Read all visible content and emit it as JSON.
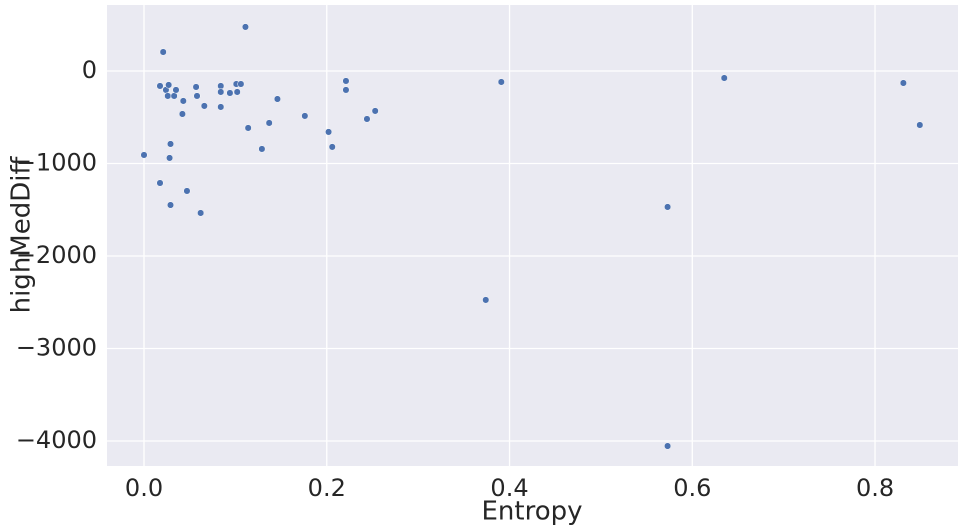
{
  "chart_data": {
    "type": "scatter",
    "x_label": "Entropy",
    "y_label": "highMedDiff",
    "x": [
      0,
      0.0175,
      0.0175,
      0.021,
      0.024,
      0.027,
      0.026,
      0.028,
      0.029,
      0.029,
      0.033,
      0.035,
      0.042,
      0.043,
      0.047,
      0.057,
      0.058,
      0.062,
      0.066,
      0.084,
      0.084,
      0.084,
      0.094,
      0.101,
      0.102,
      0.106,
      0.111,
      0.114,
      0.129,
      0.137,
      0.146,
      0.176,
      0.202,
      0.206,
      0.221,
      0.221,
      0.244,
      0.253,
      0.374,
      0.391,
      0.573,
      0.573,
      0.635,
      0.831,
      0.849
    ],
    "y": [
      -908,
      -1211,
      -162,
      205,
      -205,
      -151,
      -270,
      -940,
      -789,
      -1449,
      -270,
      -205,
      -465,
      -324,
      -1297,
      -173,
      -270,
      -1535,
      -378,
      -162,
      -227,
      -389,
      -238,
      -141,
      -227,
      -141,
      476,
      -616,
      -843,
      -562,
      -303,
      -486,
      -659,
      -821,
      -108,
      -205,
      -519,
      -432,
      -2475,
      -119,
      -1470,
      -4054,
      -76,
      -130,
      -584
    ],
    "color": "#4c72b0",
    "xlim": [
      -0.0405,
      0.8908
    ],
    "ylim": [
      -4270,
      713
    ],
    "xticks": [
      {
        "value": 0,
        "label": "0.0"
      },
      {
        "value": 0.2,
        "label": "0.2"
      },
      {
        "value": 0.4,
        "label": "0.4"
      },
      {
        "value": 0.6,
        "label": "0.6"
      },
      {
        "value": 0.8,
        "label": "0.8"
      }
    ],
    "yticks": [
      {
        "value": -4000,
        "label": "−4000"
      },
      {
        "value": -3000,
        "label": "−3000"
      },
      {
        "value": -2000,
        "label": "−2000"
      },
      {
        "value": -1000,
        "label": "−1000"
      },
      0
    ],
    "grid": true
  }
}
